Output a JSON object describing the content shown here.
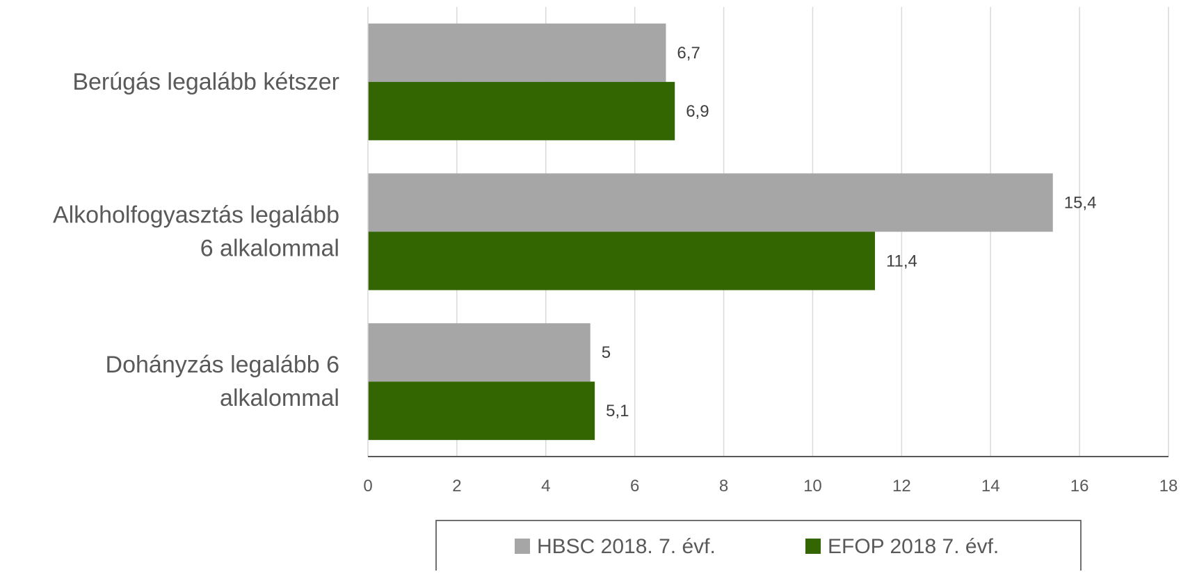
{
  "chart_data": {
    "type": "bar",
    "orientation": "horizontal",
    "categories": [
      [
        "Berúgás legalább kétszer"
      ],
      [
        "Alkoholfogyasztás  legalább",
        "6 alkalommal"
      ],
      [
        "Dohányzás legalább 6",
        "alkalommal"
      ]
    ],
    "series": [
      {
        "name": "HBSC 2018. 7. évf.",
        "color": "#a6a6a6",
        "values": [
          6.7,
          15.4,
          5
        ],
        "labels": [
          "6,7",
          "15,4",
          "5"
        ]
      },
      {
        "name": "EFOP 2018 7. évf.",
        "color": "#336600",
        "values": [
          6.9,
          11.4,
          5.1
        ],
        "labels": [
          "6,9",
          "11,4",
          "5,1"
        ]
      }
    ],
    "xlim": [
      0,
      18
    ],
    "xticks": [
      0,
      2,
      4,
      6,
      8,
      10,
      12,
      14,
      16,
      18
    ],
    "grid": "vertical",
    "legend": "bottom",
    "title": "",
    "xlabel": "",
    "ylabel": ""
  }
}
